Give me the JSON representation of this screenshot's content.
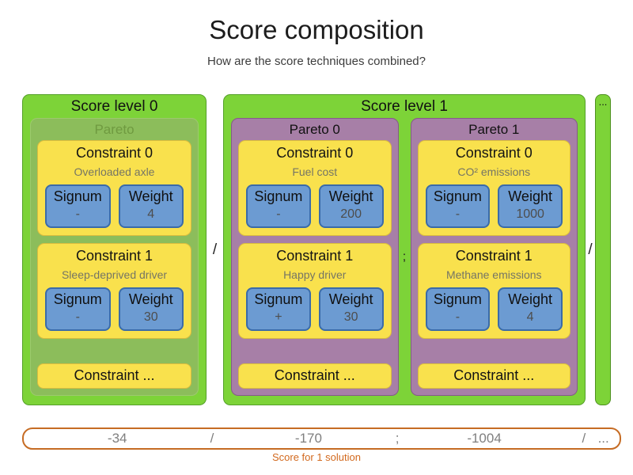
{
  "header": {
    "title": "Score composition",
    "subtitle": "How are the score techniques combined?"
  },
  "labels": {
    "signum": "Signum",
    "weight": "Weight",
    "constraint_more": "Constraint ...",
    "level_separator": "/",
    "pareto_separator": ";",
    "more_levels": "..."
  },
  "score_levels": [
    {
      "label": "Score level 0",
      "paretos": [
        {
          "label": "Pareto",
          "disabled": true,
          "constraints": [
            {
              "title": "Constraint 0",
              "description": "Overloaded axle",
              "signum": "-",
              "weight": "4"
            },
            {
              "title": "Constraint 1",
              "description": "Sleep-deprived driver",
              "signum": "-",
              "weight": "30"
            }
          ]
        }
      ]
    },
    {
      "label": "Score level 1",
      "paretos": [
        {
          "label": "Pareto 0",
          "constraints": [
            {
              "title": "Constraint 0",
              "description": "Fuel cost",
              "signum": "-",
              "weight": "200"
            },
            {
              "title": "Constraint 1",
              "description": "Happy driver",
              "signum": "+",
              "weight": "30"
            }
          ]
        },
        {
          "label": "Pareto 1",
          "constraints": [
            {
              "title": "Constraint 0",
              "description": "CO² emissions",
              "signum": "-",
              "weight": "1000"
            },
            {
              "title": "Constraint 1",
              "description": "Methane emissions",
              "signum": "-",
              "weight": "4"
            }
          ]
        }
      ]
    }
  ],
  "score_bar": {
    "values": [
      "-34",
      "/",
      "-170",
      ";",
      "-1004",
      "/",
      "..."
    ],
    "caption": "Score for 1 solution"
  },
  "colors": {
    "score_level_green": "#7dd338",
    "pareto_muted_green": "#8cbd5b",
    "pareto_purple": "#a77fa7",
    "constraint_yellow": "#f9e14d",
    "signum_weight_blue": "#6c9bd2",
    "score_bar_orange": "#c66c24",
    "caption_orange": "#d2691e",
    "value_gray": "#7f7f7f"
  }
}
